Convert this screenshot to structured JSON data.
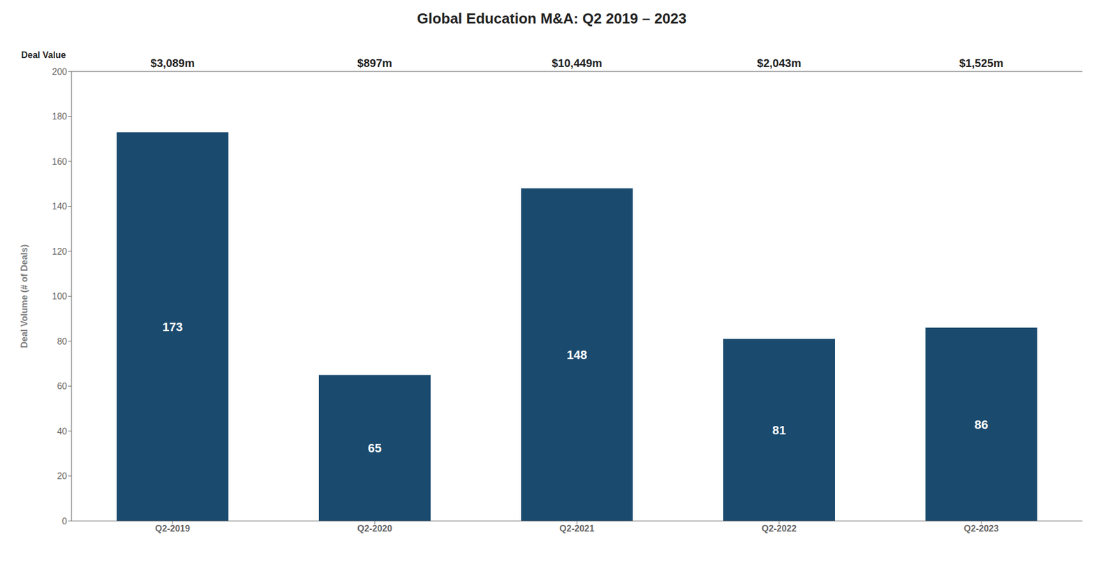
{
  "chart_data": {
    "type": "bar",
    "title": "Global Education M&A: Q2 2019 – 2023",
    "categories": [
      "Q2-2019",
      "Q2-2020",
      "Q2-2021",
      "Q2-2022",
      "Q2-2023"
    ],
    "values": [
      173,
      65,
      148,
      81,
      86
    ],
    "color": "#1a4a6e",
    "ylabel": "Deal Volume (# of Deals)",
    "ylim": [
      0,
      200
    ],
    "yticks": [
      0,
      20,
      40,
      60,
      80,
      100,
      120,
      140,
      160,
      180,
      200
    ],
    "grid": false,
    "data_labels": true,
    "deal_value": {
      "name": "Deal Value",
      "values": [
        3089,
        897,
        10449,
        2043,
        1525
      ],
      "value_labels": [
        "$3,089m",
        "$897m",
        "$10,449m",
        "$2,043m",
        "$1,525m"
      ]
    }
  }
}
